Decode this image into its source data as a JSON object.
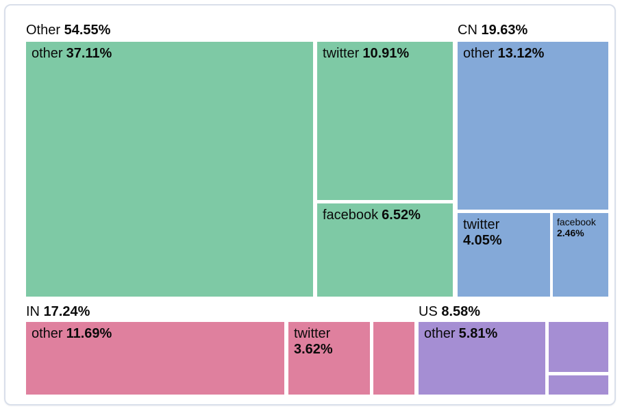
{
  "chart_data": {
    "type": "treemap",
    "title": "",
    "unit": "%",
    "layout": "grouped treemap, group labels above each group, white gaps between cells",
    "palette": {
      "green": "#7ec9a5",
      "blue": "#84a9d8",
      "pink": "#df809e",
      "purple": "#a58ed3",
      "text": "#0a0a0a",
      "card_border": "#d9dfea",
      "background": "#ffffff"
    },
    "groups": [
      {
        "id": "other-group",
        "label": "Other",
        "pct": "54.55%",
        "value": 54.55,
        "color": "#7ec9a5",
        "children": [
          {
            "id": "other",
            "label": "other",
            "pct": "37.11%",
            "value": 37.11
          },
          {
            "id": "twitter",
            "label": "twitter",
            "pct": "10.91%",
            "value": 10.91
          },
          {
            "id": "facebook",
            "label": "facebook",
            "pct": "6.52%",
            "value": 6.52
          }
        ]
      },
      {
        "id": "cn",
        "label": "CN",
        "pct": "19.63%",
        "value": 19.63,
        "color": "#84a9d8",
        "children": [
          {
            "id": "other",
            "label": "other",
            "pct": "13.12%",
            "value": 13.12
          },
          {
            "id": "twitter",
            "label": "twitter",
            "pct": "4.05%",
            "value": 4.05
          },
          {
            "id": "facebook",
            "label": "facebook",
            "pct": "2.46%",
            "value": 2.46
          }
        ]
      },
      {
        "id": "in",
        "label": "IN",
        "pct": "17.24%",
        "value": 17.24,
        "color": "#df809e",
        "children": [
          {
            "id": "other",
            "label": "other",
            "pct": "11.69%",
            "value": 11.69
          },
          {
            "id": "twitter",
            "label": "twitter",
            "pct": "3.62%",
            "value": 3.62
          },
          {
            "id": "unlabeled",
            "label": "",
            "pct": "",
            "value": null
          }
        ]
      },
      {
        "id": "us",
        "label": "US",
        "pct": "8.58%",
        "value": 8.58,
        "color": "#a58ed3",
        "children": [
          {
            "id": "other",
            "label": "other",
            "pct": "5.81%",
            "value": 5.81
          },
          {
            "id": "unlabeled-1",
            "label": "",
            "pct": "",
            "value": null
          },
          {
            "id": "unlabeled-2",
            "label": "",
            "pct": "",
            "value": null
          }
        ]
      }
    ]
  }
}
